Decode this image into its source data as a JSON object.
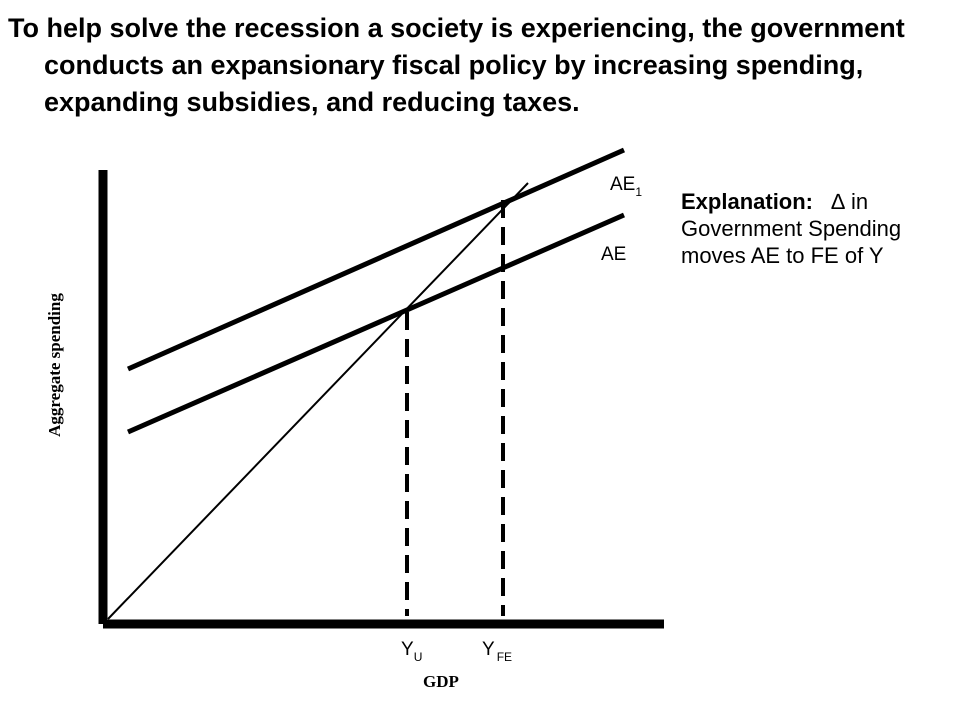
{
  "title": "To help solve the recession a society is experiencing, the government conducts an expansionary fiscal policy by increasing spending, expanding subsidies, and reducing taxes.",
  "explanation": {
    "lead": "Explanation:",
    "symbol": "∆",
    "text_after_symbol": " in Government Spending moves AE to FE of Y"
  },
  "axes": {
    "y_label": "Aggregate spending",
    "x_label": "GDP"
  },
  "curves": {
    "ae1": {
      "letters": "AE",
      "subscript": "1"
    },
    "ae": {
      "label": "AE"
    }
  },
  "x_markers": {
    "yu": {
      "letter": "Y",
      "subscript": "U"
    },
    "yfe": {
      "letter": "Y",
      "subscript": "FE"
    }
  },
  "colors": {
    "ink": "#000000",
    "background": "#ffffff"
  }
}
